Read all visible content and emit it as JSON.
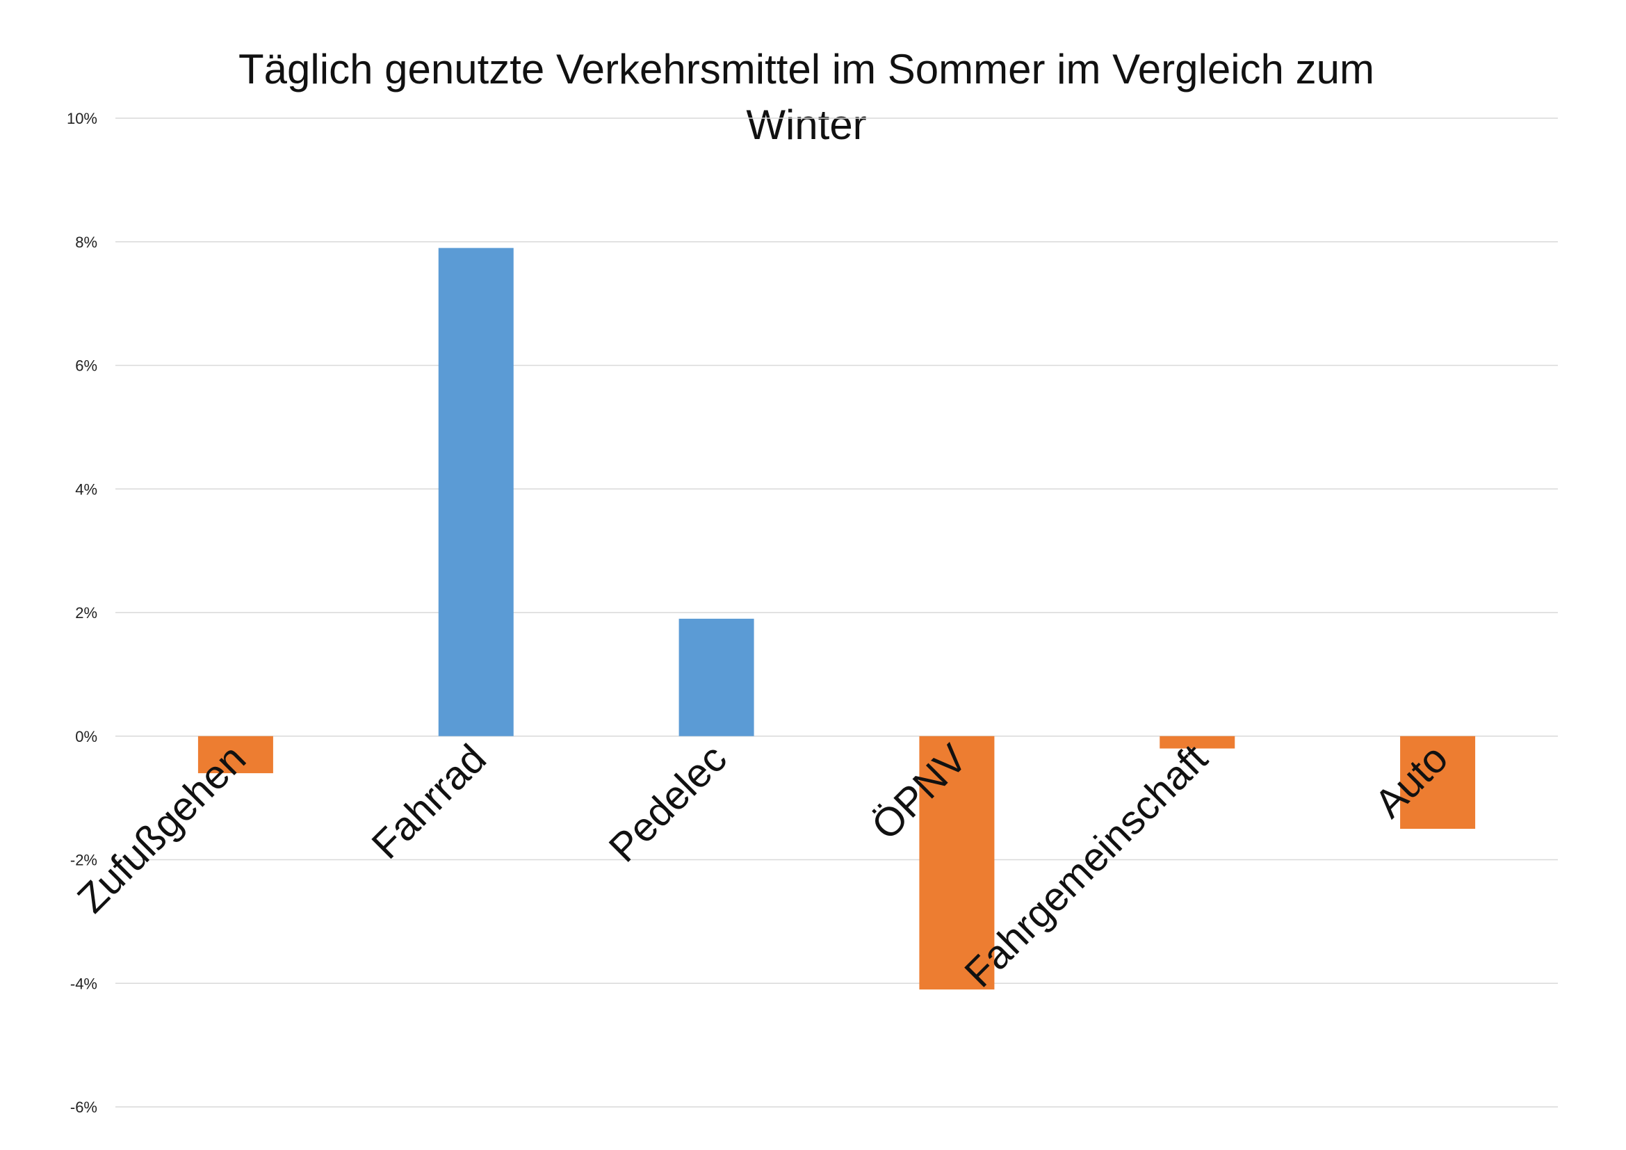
{
  "chart_data": {
    "type": "bar",
    "title": "Täglich genutzte Verkehrsmittel im Sommer im Vergleich zum Winter",
    "title_lines": [
      "Täglich genutzte Verkehrsmittel im Sommer im Vergleich zum",
      "Winter"
    ],
    "xlabel": "",
    "ylabel": "",
    "categories": [
      "Zufußgehen",
      "Fahrrad",
      "Pedelec",
      "ÖPNV",
      "Fahrgemeinschaft",
      "Auto"
    ],
    "values": [
      -0.6,
      7.9,
      1.9,
      -4.1,
      -0.2,
      -1.5
    ],
    "ylim": [
      -6,
      10
    ],
    "yticks": [
      10,
      8,
      6,
      4,
      2,
      0,
      -2,
      -4,
      -6
    ],
    "ytick_labels": [
      "10%",
      "8%",
      "6%",
      "4%",
      "2%",
      "0%",
      "-2%",
      "-4%",
      "-6%"
    ],
    "grid": true,
    "legend": "none",
    "colors": {
      "positive": "#5b9bd5",
      "negative": "#ed7d31"
    }
  }
}
